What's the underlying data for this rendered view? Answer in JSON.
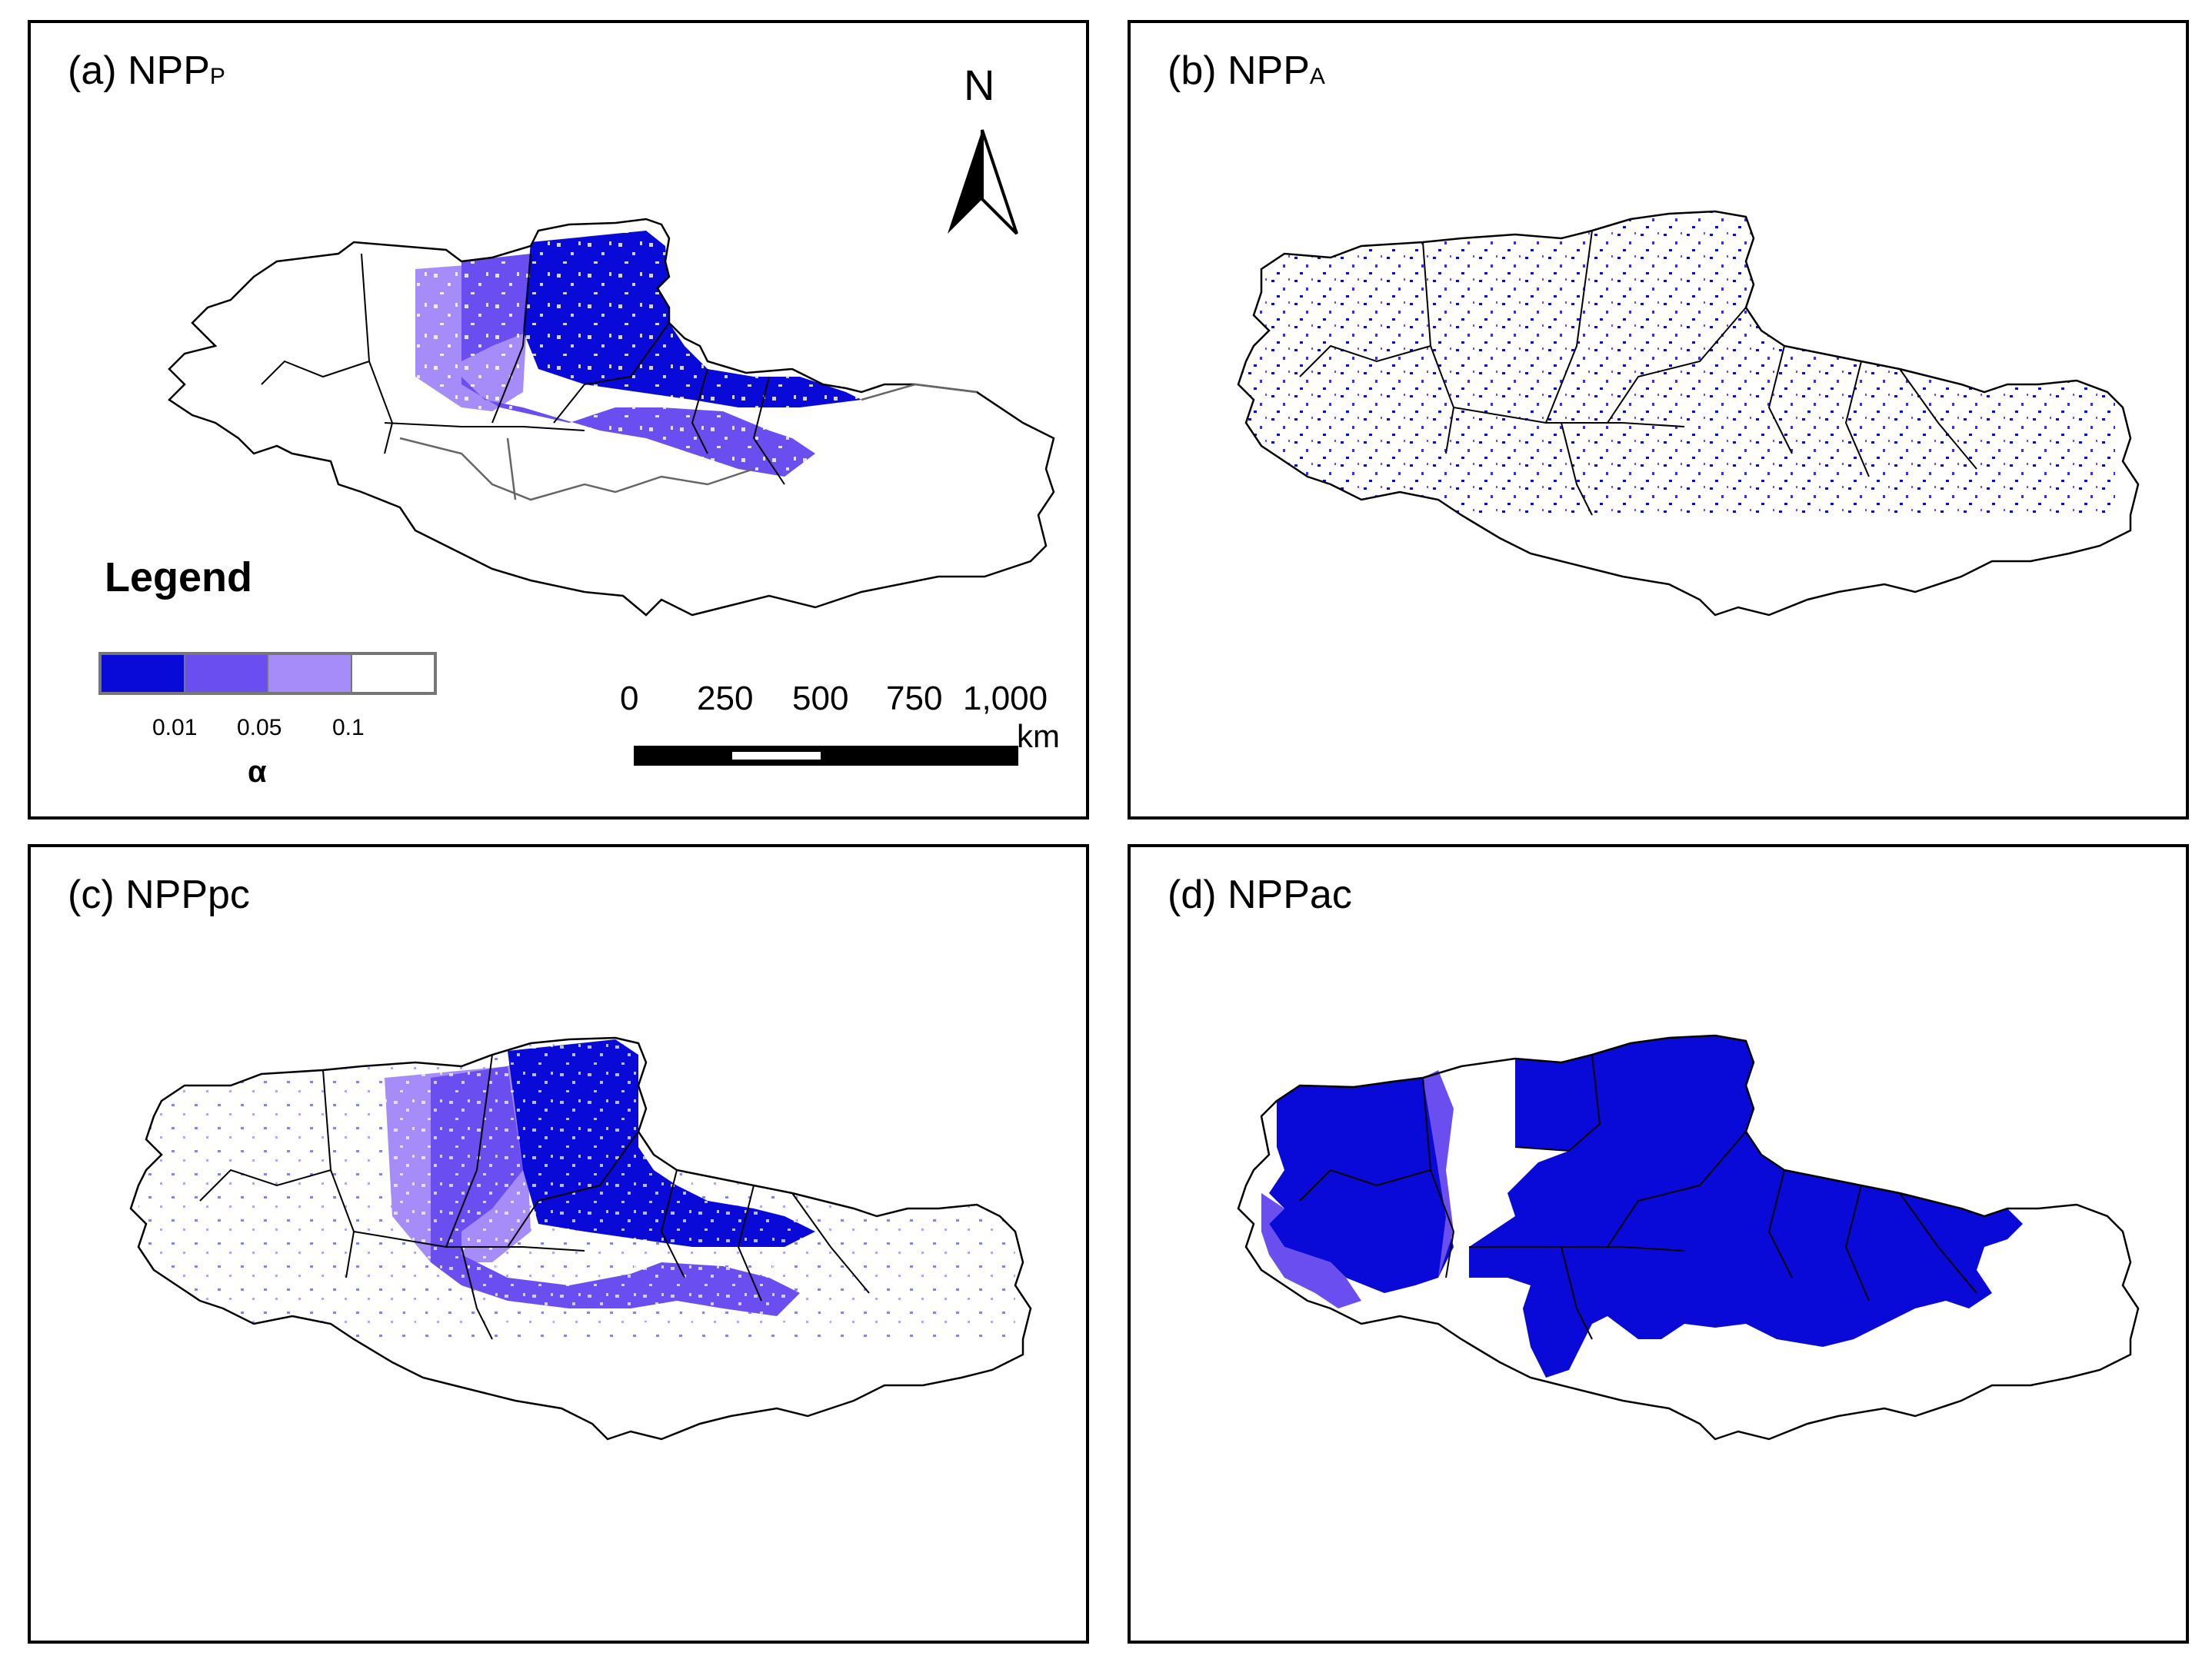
{
  "panels": [
    {
      "prefix": "(a) NPP",
      "subscript": "P"
    },
    {
      "prefix": "(b) NPP",
      "subscript": "A"
    },
    {
      "prefix": "(c) NPPpc",
      "subscript": ""
    },
    {
      "prefix": "(d) NPPac",
      "subscript": ""
    }
  ],
  "north_arrow": {
    "label": "N"
  },
  "legend": {
    "title": "Legend",
    "classes": [
      {
        "color": "#0a0ad8"
      },
      {
        "color": "#6b4ef0"
      },
      {
        "color": "#a58cf8"
      },
      {
        "color": "#ffffff"
      }
    ],
    "breaks": [
      "0.01",
      "0.05",
      "0.1"
    ],
    "variable": "α"
  },
  "scale_bar": {
    "ticks": [
      "0",
      "250",
      "500",
      "750",
      "1,000"
    ],
    "unit": "km"
  },
  "colors": {
    "strong": "#0a0ad8",
    "medium": "#6b4ef0",
    "light": "#a58cf8",
    "outline": "#000000",
    "gray_outline": "#666666"
  }
}
